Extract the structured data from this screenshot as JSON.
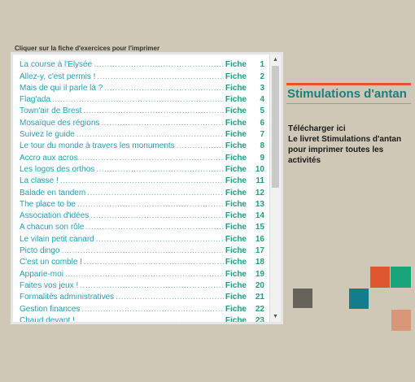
{
  "instruction": "Cliquer sur la fiche d'exercices pour l'imprimer",
  "fiche_label": "Fiche",
  "items": [
    {
      "title": "La course à l'Elysée",
      "num": "1"
    },
    {
      "title": "Allez-y, c'est permis !",
      "num": "2"
    },
    {
      "title": "Mais de qui il parle là ?",
      "num": "3"
    },
    {
      "title": "Flag'ada",
      "num": "4"
    },
    {
      "title": "Town'air de Brest",
      "num": "5"
    },
    {
      "title": "Mosaïque des régions",
      "num": "6"
    },
    {
      "title": "Suivez le guide",
      "num": "7"
    },
    {
      "title": "Le tour du monde à travers les monuments",
      "num": "8"
    },
    {
      "title": "Accro aux acros",
      "num": "9"
    },
    {
      "title": "Les logos des orthos",
      "num": "10"
    },
    {
      "title": "La classe !",
      "num": "11"
    },
    {
      "title": "Balade en tandem",
      "num": "12"
    },
    {
      "title": "The place to be",
      "num": "13"
    },
    {
      "title": "Association d'idées",
      "num": "14"
    },
    {
      "title": "A chacun son rôle",
      "num": "15"
    },
    {
      "title": "Le vilain petit canard",
      "num": "16"
    },
    {
      "title": "Picto dingo",
      "num": "17"
    },
    {
      "title": "C'est un comble !",
      "num": "18"
    },
    {
      "title": "Apparie-moi",
      "num": "19"
    },
    {
      "title": "Faites vos jeux !",
      "num": "20"
    },
    {
      "title": "Formalités administratives",
      "num": "21"
    },
    {
      "title": "Gestion finances",
      "num": "22"
    },
    {
      "title": "Chaud devant !",
      "num": "23"
    }
  ],
  "brand": {
    "title": "Stimulations d'antan"
  },
  "download": {
    "line1": "Télécharger ici",
    "line2": "Le livret Stimulations d'antan",
    "line3": "pour imprimer toutes les",
    "line4": "activités"
  },
  "colors": {
    "background": "#cfc8b7",
    "item_title": "#20a3b5",
    "fiche": "#22a07e",
    "brand_title": "#1e7d80",
    "accent_orange": "#e0572f",
    "accent_green": "#1aa57b",
    "accent_gray": "#67625c",
    "accent_teal": "#137d8c",
    "accent_salmon": "#d99678"
  },
  "icons": {
    "scroll_up": "triangle-up",
    "scroll_down": "triangle-down"
  }
}
